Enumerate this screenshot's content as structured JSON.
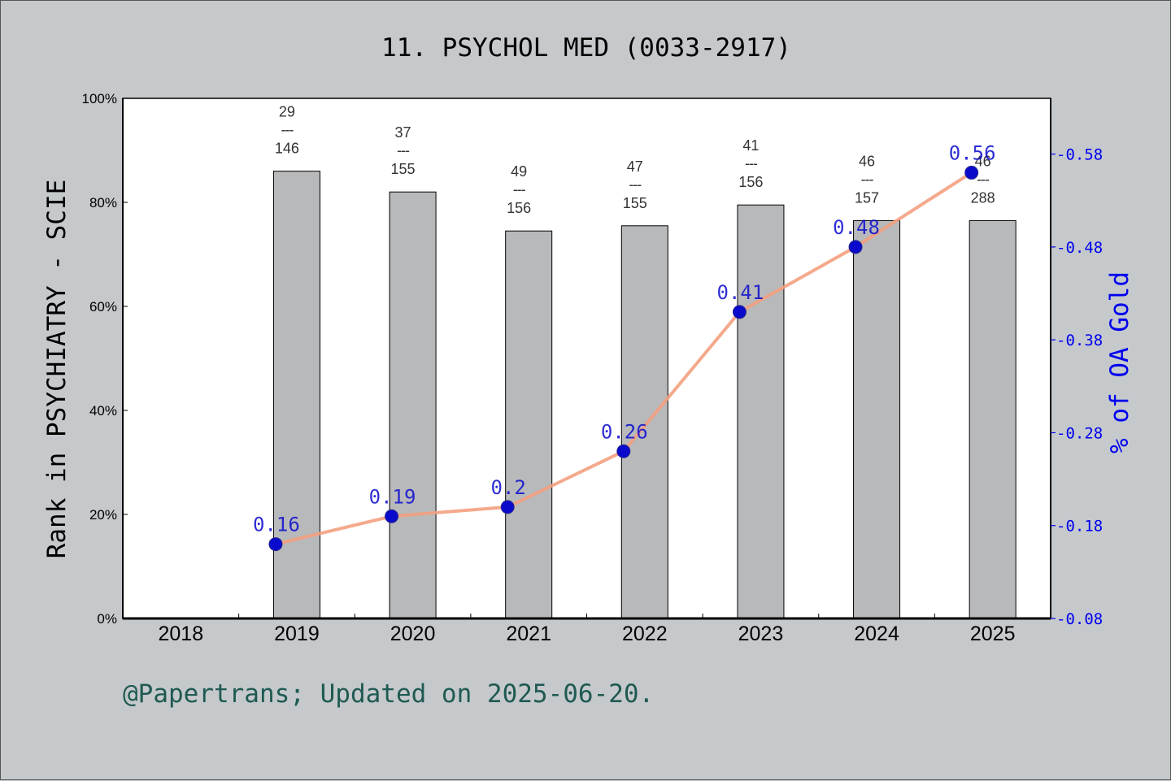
{
  "footer": "@Papertrans; Updated on 2025-06-20.",
  "colors": {
    "background": "#c5c9cc",
    "bar": "#b8b9bb",
    "line": "#f4a07f",
    "marker": "#0a0acd",
    "right_axis": "#0000ee",
    "footer": "#1f5a52"
  },
  "chart_data": {
    "type": "bar",
    "title": "11. PSYCHOL MED (0033-2917)",
    "categories": [
      "2018",
      "2019",
      "2020",
      "2021",
      "2022",
      "2023",
      "2024",
      "2025"
    ],
    "ylabel": "Rank in PSYCHIATRY - SCIE",
    "ylabel_right": "% of OA Gold",
    "ylim": [
      0,
      100
    ],
    "yticks": [
      "0%",
      "20%",
      "40%",
      "60%",
      "80%",
      "100%"
    ],
    "ylim_right": [
      0.08,
      0.64
    ],
    "yticks_right": [
      "0.08",
      "0.18",
      "0.28",
      "0.38",
      "0.48",
      "0.58"
    ],
    "grid": false,
    "series": [
      {
        "type": "bar",
        "values": [
          null,
          86,
          82,
          74.5,
          75.5,
          79.5,
          76.5,
          76.5
        ],
        "labels": [
          null,
          {
            "rank": "29",
            "sep": "---",
            "total": "146"
          },
          {
            "rank": "37",
            "sep": "---",
            "total": "155"
          },
          {
            "rank": "49",
            "sep": "---",
            "total": "156"
          },
          {
            "rank": "47",
            "sep": "---",
            "total": "155"
          },
          {
            "rank": "41",
            "sep": "---",
            "total": "156"
          },
          {
            "rank": "46",
            "sep": "---",
            "total": "157"
          },
          {
            "rank": "46",
            "sep": "---",
            "total": "288"
          }
        ]
      },
      {
        "type": "line",
        "axis": "right",
        "values": [
          null,
          0.16,
          0.19,
          0.2,
          0.26,
          0.41,
          0.48,
          0.56
        ],
        "value_labels": [
          null,
          "0.16",
          "0.19",
          "0.2",
          "0.26",
          "0.41",
          "0.48",
          "0.56"
        ]
      }
    ]
  }
}
